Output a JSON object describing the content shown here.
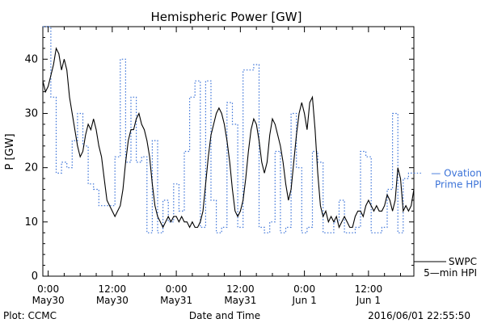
{
  "chart_data": {
    "type": "line",
    "title": "Hemispheric Power [GW]",
    "ylabel": "P [GW]",
    "xlabel": "Date and Time",
    "ylim": [
      0,
      46
    ],
    "yticks": [
      0,
      10,
      20,
      30,
      40
    ],
    "xlim_hours": [
      -1,
      68.5
    ],
    "xticks": [
      {
        "hour": 0,
        "line1": "0:00",
        "line2": "May30"
      },
      {
        "hour": 12,
        "line1": "12:00",
        "line2": "May30"
      },
      {
        "hour": 24,
        "line1": "0:00",
        "line2": "May31"
      },
      {
        "hour": 36,
        "line1": "12:00",
        "line2": "May31"
      },
      {
        "hour": 48,
        "line1": "0:00",
        "line2": "Jun 1"
      },
      {
        "hour": 60,
        "line1": "12:00",
        "line2": "Jun 1"
      }
    ],
    "series": [
      {
        "name": "SWPC 5-min HPI",
        "color": "#000000",
        "style": "solid",
        "points": [
          [
            -1,
            36
          ],
          [
            -0.5,
            34
          ],
          [
            0,
            35
          ],
          [
            0.5,
            37
          ],
          [
            1,
            39
          ],
          [
            1.5,
            42
          ],
          [
            2,
            41
          ],
          [
            2.5,
            38
          ],
          [
            3,
            40
          ],
          [
            3.5,
            38
          ],
          [
            4,
            33
          ],
          [
            4.5,
            30
          ],
          [
            5,
            27
          ],
          [
            5.5,
            24
          ],
          [
            6,
            22
          ],
          [
            6.5,
            23
          ],
          [
            7,
            26
          ],
          [
            7.5,
            28
          ],
          [
            8,
            27
          ],
          [
            8.5,
            29
          ],
          [
            9,
            27
          ],
          [
            9.5,
            24
          ],
          [
            10,
            22
          ],
          [
            10.5,
            18
          ],
          [
            11,
            14
          ],
          [
            11.5,
            13
          ],
          [
            12,
            12
          ],
          [
            12.5,
            11
          ],
          [
            13,
            12
          ],
          [
            13.5,
            13
          ],
          [
            14,
            16
          ],
          [
            14.5,
            21
          ],
          [
            15,
            25
          ],
          [
            15.5,
            27
          ],
          [
            16,
            27
          ],
          [
            16.5,
            29
          ],
          [
            17,
            30
          ],
          [
            17.5,
            28
          ],
          [
            18,
            27
          ],
          [
            18.5,
            25
          ],
          [
            19,
            22
          ],
          [
            19.5,
            17
          ],
          [
            20,
            13
          ],
          [
            20.5,
            11
          ],
          [
            21,
            10
          ],
          [
            21.5,
            9
          ],
          [
            22,
            10
          ],
          [
            22.5,
            11
          ],
          [
            23,
            10
          ],
          [
            23.5,
            11
          ],
          [
            24,
            11
          ],
          [
            24.5,
            10
          ],
          [
            25,
            11
          ],
          [
            25.5,
            10
          ],
          [
            26,
            10
          ],
          [
            26.5,
            9
          ],
          [
            27,
            10
          ],
          [
            27.5,
            9
          ],
          [
            28,
            9
          ],
          [
            28.5,
            10
          ],
          [
            29,
            12
          ],
          [
            29.5,
            17
          ],
          [
            30,
            22
          ],
          [
            30.5,
            26
          ],
          [
            31,
            28
          ],
          [
            31.5,
            30
          ],
          [
            32,
            31
          ],
          [
            32.5,
            30
          ],
          [
            33,
            28
          ],
          [
            33.5,
            25
          ],
          [
            34,
            21
          ],
          [
            34.5,
            16
          ],
          [
            35,
            12
          ],
          [
            35.5,
            11
          ],
          [
            36,
            12
          ],
          [
            36.5,
            14
          ],
          [
            37,
            18
          ],
          [
            37.5,
            23
          ],
          [
            38,
            27
          ],
          [
            38.5,
            29
          ],
          [
            39,
            28
          ],
          [
            39.5,
            25
          ],
          [
            40,
            21
          ],
          [
            40.5,
            19
          ],
          [
            41,
            21
          ],
          [
            41.5,
            26
          ],
          [
            42,
            29
          ],
          [
            42.5,
            28
          ],
          [
            43,
            26
          ],
          [
            43.5,
            24
          ],
          [
            44,
            21
          ],
          [
            44.5,
            17
          ],
          [
            45,
            14
          ],
          [
            45.5,
            16
          ],
          [
            46,
            21
          ],
          [
            46.5,
            26
          ],
          [
            47,
            30
          ],
          [
            47.5,
            32
          ],
          [
            48,
            30
          ],
          [
            48.5,
            27
          ],
          [
            49,
            32
          ],
          [
            49.5,
            33
          ],
          [
            50,
            27
          ],
          [
            50.5,
            19
          ],
          [
            51,
            13
          ],
          [
            51.5,
            11
          ],
          [
            52,
            12
          ],
          [
            52.5,
            10
          ],
          [
            53,
            11
          ],
          [
            53.5,
            10
          ],
          [
            54,
            11
          ],
          [
            54.5,
            9
          ],
          [
            55,
            10
          ],
          [
            55.5,
            11
          ],
          [
            56,
            10
          ],
          [
            56.5,
            9
          ],
          [
            57,
            9
          ],
          [
            57.5,
            11
          ],
          [
            58,
            12
          ],
          [
            58.5,
            12
          ],
          [
            59,
            11
          ],
          [
            59.5,
            13
          ],
          [
            60,
            14
          ],
          [
            60.5,
            13
          ],
          [
            61,
            12
          ],
          [
            61.5,
            13
          ],
          [
            62,
            12
          ],
          [
            62.5,
            12
          ],
          [
            63,
            13
          ],
          [
            63.5,
            15
          ],
          [
            64,
            14
          ],
          [
            64.5,
            12
          ],
          [
            65,
            14
          ],
          [
            65.5,
            20
          ],
          [
            66,
            18
          ],
          [
            66.5,
            12
          ],
          [
            67,
            13
          ],
          [
            67.5,
            12
          ],
          [
            68,
            13
          ],
          [
            68.5,
            16
          ]
        ]
      },
      {
        "name": "Ovation Prime HPI",
        "color": "#3a72d8",
        "style": "dotted",
        "points": [
          [
            -1,
            46
          ],
          [
            0.5,
            46
          ],
          [
            0.5,
            33
          ],
          [
            1.5,
            33
          ],
          [
            1.5,
            19
          ],
          [
            2.5,
            19
          ],
          [
            2.5,
            21
          ],
          [
            3.5,
            21
          ],
          [
            3.5,
            20
          ],
          [
            4.5,
            20
          ],
          [
            4.5,
            25
          ],
          [
            5.5,
            25
          ],
          [
            5.5,
            30
          ],
          [
            6.5,
            30
          ],
          [
            6.5,
            24
          ],
          [
            7.5,
            24
          ],
          [
            7.5,
            17
          ],
          [
            8.5,
            17
          ],
          [
            8.5,
            16
          ],
          [
            9.5,
            16
          ],
          [
            9.5,
            13
          ],
          [
            12.5,
            13
          ],
          [
            12.5,
            22
          ],
          [
            13.5,
            22
          ],
          [
            13.5,
            40
          ],
          [
            14.5,
            40
          ],
          [
            14.5,
            21
          ],
          [
            15.5,
            21
          ],
          [
            15.5,
            33
          ],
          [
            16.5,
            33
          ],
          [
            16.5,
            21
          ],
          [
            17.5,
            21
          ],
          [
            17.5,
            22
          ],
          [
            18.5,
            22
          ],
          [
            18.5,
            8
          ],
          [
            19.5,
            8
          ],
          [
            19.5,
            25
          ],
          [
            20.5,
            25
          ],
          [
            20.5,
            8
          ],
          [
            21.5,
            8
          ],
          [
            21.5,
            14
          ],
          [
            22.5,
            14
          ],
          [
            22.5,
            10
          ],
          [
            23.5,
            10
          ],
          [
            23.5,
            17
          ],
          [
            24.5,
            17
          ],
          [
            24.5,
            12
          ],
          [
            25.5,
            12
          ],
          [
            25.5,
            23
          ],
          [
            26.5,
            23
          ],
          [
            26.5,
            33
          ],
          [
            27.5,
            33
          ],
          [
            27.5,
            36
          ],
          [
            28.5,
            36
          ],
          [
            28.5,
            9
          ],
          [
            29.5,
            9
          ],
          [
            29.5,
            36
          ],
          [
            30.5,
            36
          ],
          [
            30.5,
            14
          ],
          [
            31.5,
            14
          ],
          [
            31.5,
            8
          ],
          [
            32.5,
            8
          ],
          [
            32.5,
            9
          ],
          [
            33.5,
            9
          ],
          [
            33.5,
            32
          ],
          [
            34.5,
            32
          ],
          [
            34.5,
            28
          ],
          [
            35.5,
            28
          ],
          [
            35.5,
            9
          ],
          [
            36.5,
            9
          ],
          [
            36.5,
            38
          ],
          [
            38.5,
            38
          ],
          [
            38.5,
            39
          ],
          [
            39.5,
            39
          ],
          [
            39.5,
            9
          ],
          [
            40.5,
            9
          ],
          [
            40.5,
            8
          ],
          [
            41.5,
            8
          ],
          [
            41.5,
            10
          ],
          [
            42.5,
            10
          ],
          [
            42.5,
            23
          ],
          [
            43.5,
            23
          ],
          [
            43.5,
            8
          ],
          [
            44.5,
            8
          ],
          [
            44.5,
            9
          ],
          [
            45.5,
            9
          ],
          [
            45.5,
            30
          ],
          [
            46.5,
            30
          ],
          [
            46.5,
            20
          ],
          [
            47.5,
            20
          ],
          [
            47.5,
            8
          ],
          [
            48.5,
            8
          ],
          [
            48.5,
            9
          ],
          [
            49.5,
            9
          ],
          [
            49.5,
            23
          ],
          [
            50.5,
            23
          ],
          [
            50.5,
            21
          ],
          [
            51.5,
            21
          ],
          [
            51.5,
            8
          ],
          [
            53.5,
            8
          ],
          [
            53.5,
            10
          ],
          [
            54.5,
            10
          ],
          [
            54.5,
            14
          ],
          [
            55.5,
            14
          ],
          [
            55.5,
            8
          ],
          [
            57.5,
            8
          ],
          [
            57.5,
            9
          ],
          [
            58.5,
            9
          ],
          [
            58.5,
            23
          ],
          [
            59.5,
            23
          ],
          [
            59.5,
            22
          ],
          [
            60.5,
            22
          ],
          [
            60.5,
            8
          ],
          [
            62.5,
            8
          ],
          [
            62.5,
            9
          ],
          [
            63.5,
            9
          ],
          [
            63.5,
            16
          ],
          [
            64.5,
            16
          ],
          [
            64.5,
            30
          ],
          [
            65.5,
            30
          ],
          [
            65.5,
            8
          ],
          [
            66.5,
            8
          ],
          [
            66.5,
            18
          ],
          [
            67.5,
            18
          ],
          [
            67.5,
            19
          ],
          [
            68.5,
            19
          ]
        ]
      }
    ],
    "legend": [
      {
        "text": "— Ovation",
        "text2": "Prime HPI",
        "color": "#3a72d8",
        "at_value": 19
      },
      {
        "text": "SWPC",
        "text2": "5—min HPI",
        "color": "#000000",
        "at_value": 2
      }
    ],
    "footer": {
      "left": "Plot: CCMC",
      "center": "Date and Time",
      "right": "2016/06/01 22:55:50"
    }
  }
}
